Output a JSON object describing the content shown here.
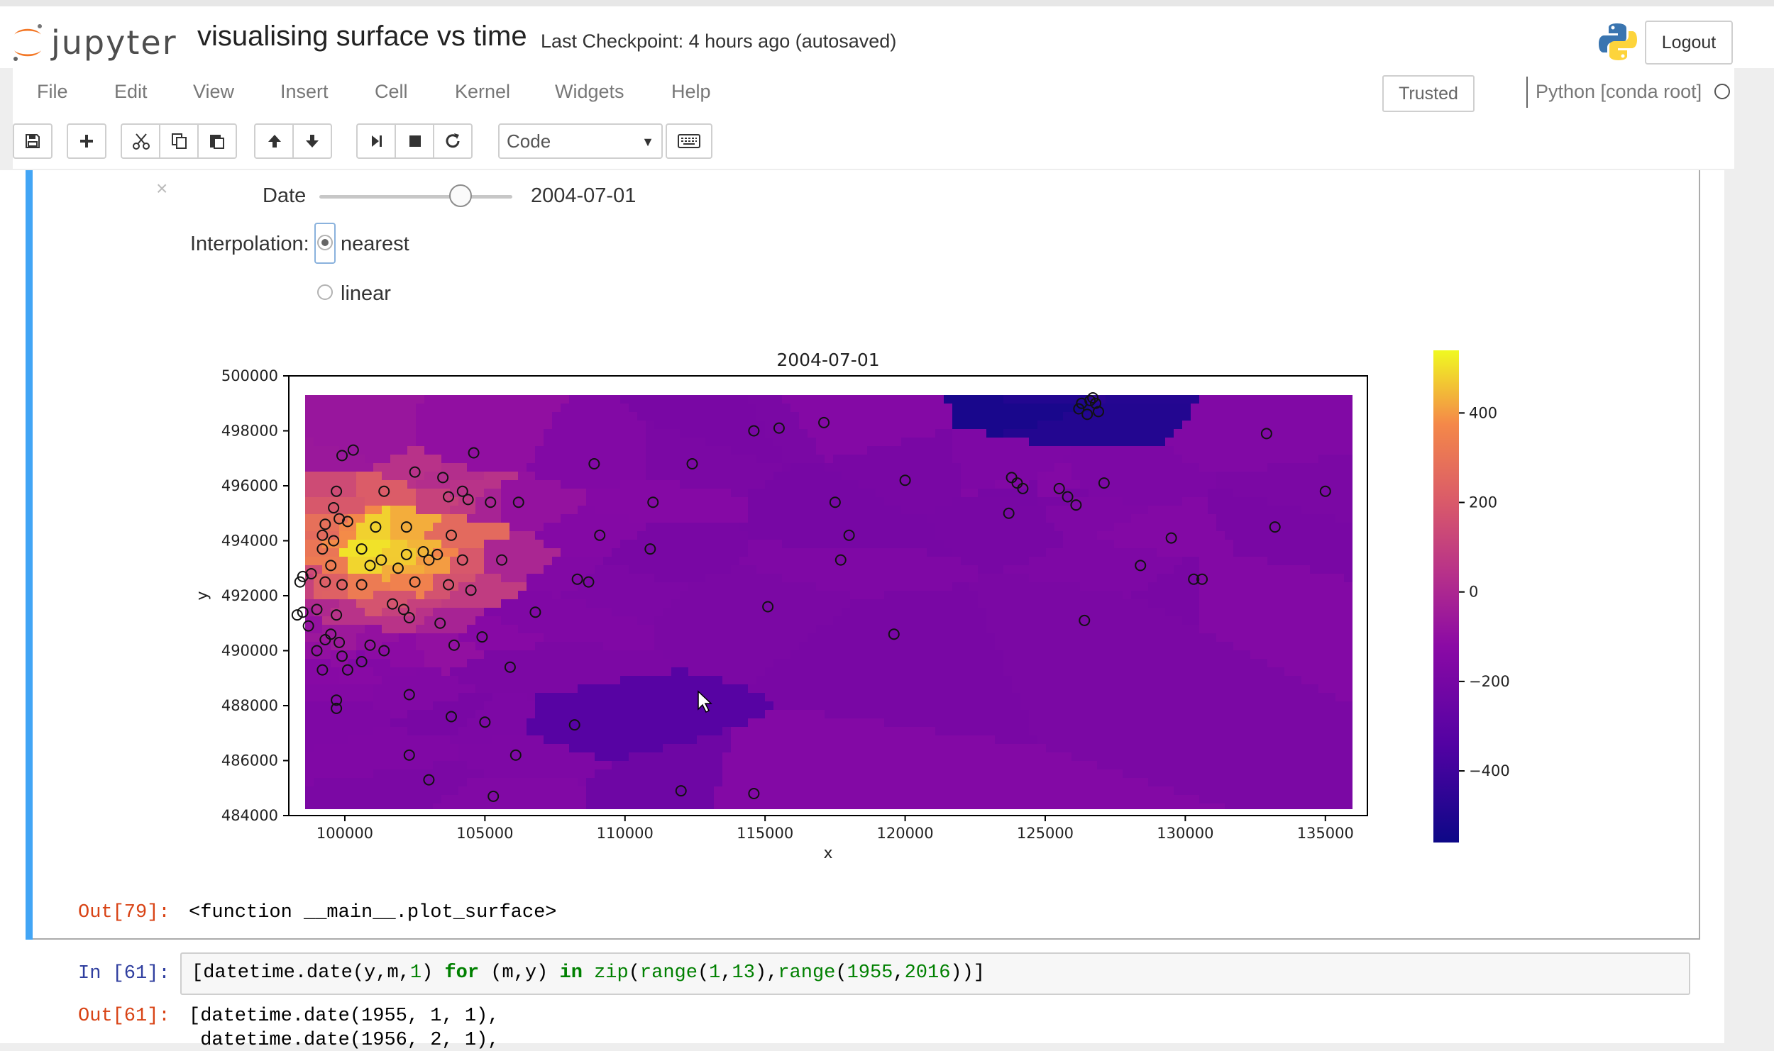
{
  "header": {
    "logo_text": "jupyter",
    "notebook_title": "visualising surface vs time",
    "checkpoint": "Last Checkpoint: 4 hours ago (autosaved)",
    "logout_label": "Logout"
  },
  "menu": {
    "items": [
      "File",
      "Edit",
      "View",
      "Insert",
      "Cell",
      "Kernel",
      "Widgets",
      "Help"
    ],
    "trusted_label": "Trusted",
    "kernel_name": "Python [conda root]"
  },
  "toolbar": {
    "buttons": [
      "save-icon",
      "plus-icon",
      "scissors-icon",
      "copy-icon",
      "paste-icon",
      "arrow-up-icon",
      "arrow-down-icon",
      "skip-to-end-icon",
      "stop-icon",
      "restart-icon",
      "keyboard-icon"
    ],
    "cell_type": "Code"
  },
  "widget": {
    "date_label": "Date",
    "date_value": "2004-07-01",
    "slider_fraction": 0.73,
    "interpolation_label": "Interpolation:",
    "options": [
      "nearest",
      "linear"
    ],
    "selected": "nearest"
  },
  "chart_data": {
    "type": "heatmap",
    "title": "2004-07-01",
    "xlabel": "x",
    "ylabel": "y",
    "xlim": [
      98000,
      136500
    ],
    "ylim": [
      484000,
      500000
    ],
    "xticks": [
      "100000",
      "105000",
      "110000",
      "115000",
      "120000",
      "125000",
      "130000",
      "135000"
    ],
    "yticks": [
      "484000",
      "486000",
      "488000",
      "490000",
      "492000",
      "494000",
      "496000",
      "498000",
      "500000"
    ],
    "colormap": "plasma",
    "colorbar_ticks": [
      "400",
      "200",
      "0",
      "−200",
      "−400"
    ],
    "colorbar_range": [
      -560,
      540
    ],
    "points": [
      [
        99900,
        497100
      ],
      [
        100300,
        497300
      ],
      [
        102500,
        496500
      ],
      [
        103500,
        496300
      ],
      [
        104600,
        497200
      ],
      [
        99700,
        495800
      ],
      [
        101400,
        495800
      ],
      [
        103700,
        495600
      ],
      [
        104200,
        495800
      ],
      [
        104400,
        495500
      ],
      [
        105200,
        495400
      ],
      [
        106200,
        495400
      ],
      [
        99600,
        495200
      ],
      [
        99800,
        494800
      ],
      [
        100100,
        494700
      ],
      [
        99300,
        494600
      ],
      [
        101100,
        494500
      ],
      [
        102200,
        494500
      ],
      [
        103800,
        494200
      ],
      [
        99200,
        494200
      ],
      [
        99600,
        494000
      ],
      [
        99200,
        493700
      ],
      [
        100600,
        493700
      ],
      [
        102200,
        493500
      ],
      [
        102800,
        493600
      ],
      [
        103000,
        493300
      ],
      [
        103300,
        493500
      ],
      [
        101300,
        493300
      ],
      [
        100900,
        493100
      ],
      [
        99500,
        493100
      ],
      [
        101900,
        493000
      ],
      [
        104200,
        493300
      ],
      [
        105600,
        493300
      ],
      [
        98500,
        492700
      ],
      [
        98800,
        492800
      ],
      [
        99300,
        492500
      ],
      [
        99900,
        492400
      ],
      [
        100600,
        492400
      ],
      [
        102500,
        492500
      ],
      [
        103700,
        492400
      ],
      [
        104500,
        492200
      ],
      [
        98400,
        492500
      ],
      [
        101700,
        491700
      ],
      [
        102100,
        491500
      ],
      [
        102300,
        491200
      ],
      [
        99000,
        491500
      ],
      [
        98300,
        491300
      ],
      [
        99700,
        491300
      ],
      [
        98700,
        490900
      ],
      [
        103400,
        491000
      ],
      [
        98500,
        491400
      ],
      [
        99500,
        490600
      ],
      [
        99800,
        490300
      ],
      [
        99300,
        490400
      ],
      [
        100900,
        490200
      ],
      [
        101400,
        490000
      ],
      [
        103900,
        490200
      ],
      [
        104900,
        490500
      ],
      [
        99000,
        490000
      ],
      [
        99900,
        489800
      ],
      [
        100100,
        489300
      ],
      [
        100600,
        489600
      ],
      [
        99200,
        489300
      ],
      [
        102300,
        488400
      ],
      [
        99700,
        487900
      ],
      [
        99700,
        488200
      ],
      [
        103800,
        487600
      ],
      [
        105000,
        487400
      ],
      [
        105900,
        489400
      ],
      [
        106100,
        486200
      ],
      [
        102300,
        486200
      ],
      [
        103000,
        485300
      ],
      [
        105300,
        484700
      ],
      [
        106800,
        491400
      ],
      [
        108300,
        492600
      ],
      [
        108700,
        492500
      ],
      [
        108200,
        487300
      ],
      [
        109100,
        494200
      ],
      [
        108900,
        496800
      ],
      [
        111000,
        495400
      ],
      [
        112400,
        496800
      ],
      [
        110900,
        493700
      ],
      [
        114600,
        498000
      ],
      [
        115500,
        498100
      ],
      [
        117100,
        498300
      ],
      [
        117500,
        495400
      ],
      [
        118000,
        494200
      ],
      [
        117700,
        493300
      ],
      [
        115100,
        491600
      ],
      [
        119600,
        490600
      ],
      [
        120000,
        496200
      ],
      [
        123800,
        496300
      ],
      [
        124000,
        496100
      ],
      [
        124200,
        495900
      ],
      [
        123700,
        495000
      ],
      [
        125500,
        495900
      ],
      [
        125800,
        495600
      ],
      [
        126100,
        495300
      ],
      [
        127100,
        496100
      ],
      [
        126200,
        498800
      ],
      [
        126600,
        499100
      ],
      [
        126800,
        499000
      ],
      [
        126300,
        499000
      ],
      [
        126900,
        498700
      ],
      [
        126500,
        498600
      ],
      [
        126700,
        499200
      ],
      [
        128400,
        493100
      ],
      [
        129500,
        494100
      ],
      [
        130300,
        492600
      ],
      [
        130600,
        492600
      ],
      [
        126400,
        491100
      ],
      [
        132900,
        497900
      ],
      [
        133200,
        494500
      ],
      [
        135000,
        495800
      ],
      [
        112000,
        484900
      ],
      [
        114600,
        484800
      ]
    ],
    "low_regions": [
      "around (111000, 487500)",
      "around (126500, 498500)"
    ],
    "high_regions": [
      "around (101000, 494000)"
    ]
  },
  "output79": {
    "prompt": "Out[79]:",
    "text": "<function __main__.plot_surface>"
  },
  "cell61": {
    "prompt": "In [61]:",
    "code": {
      "p1": "[datetime.date(y,m,",
      "n1": "1",
      "p2": ") ",
      "k1": "for",
      "p3": " (m,y) ",
      "k2": "in",
      "p4": " ",
      "b1": "zip",
      "p5": "(",
      "b2": "range",
      "p6": "(",
      "n2": "1",
      "p7": ",",
      "n3": "13",
      "p8": "),",
      "b3": "range",
      "p9": "(",
      "n4": "1955",
      "p10": ",",
      "n5": "2016",
      "p11": "))]"
    },
    "out_prompt": "Out[61]:",
    "out_line1": "[datetime.date(1955, 1, 1),",
    "out_line2": " datetime.date(1956, 2, 1),"
  }
}
